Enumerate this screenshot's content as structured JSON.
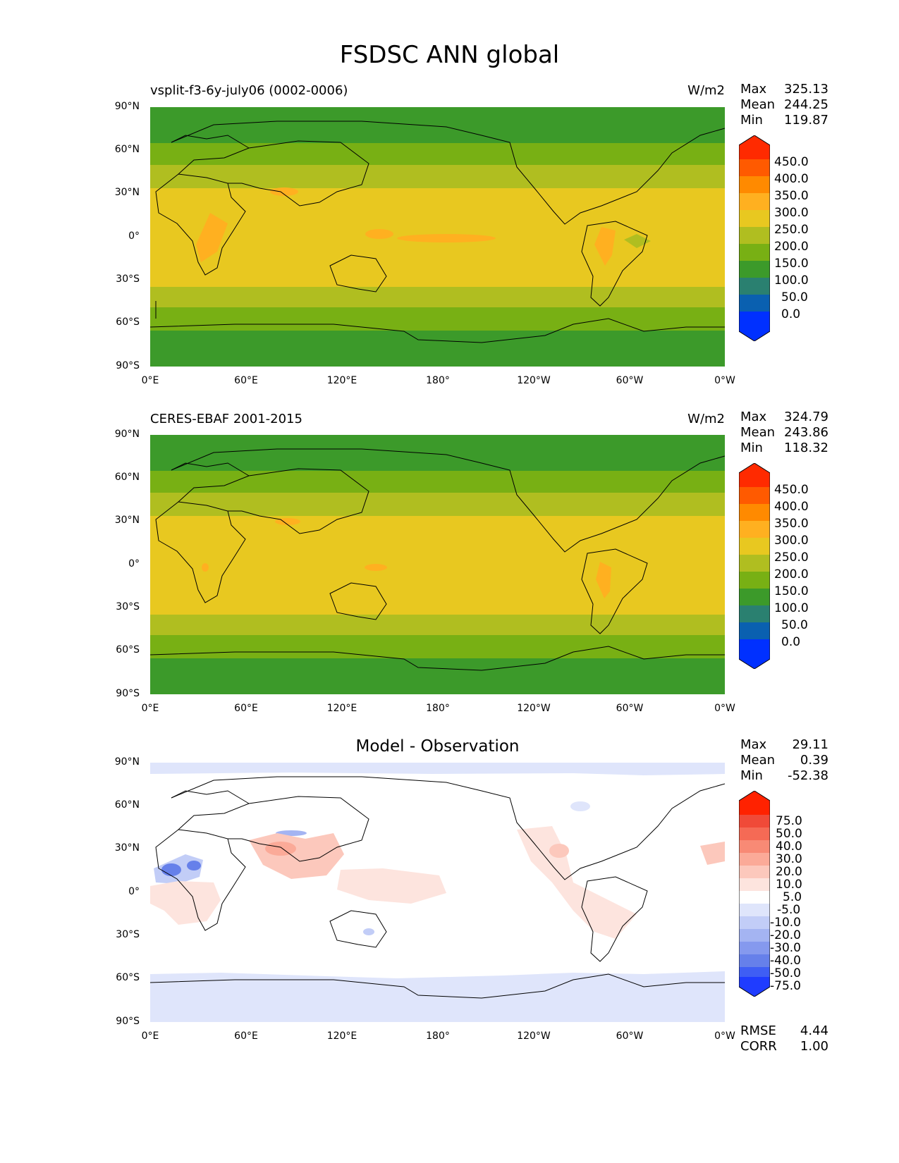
{
  "figure": {
    "title": "FSDSC ANN global"
  },
  "axes": {
    "lat_ticks": [
      "90°N",
      "60°N",
      "30°N",
      "0°",
      "30°S",
      "60°S",
      "90°S"
    ],
    "lon_ticks": [
      "0°E",
      "60°E",
      "120°E",
      "180°",
      "120°W",
      "60°W",
      "0°W"
    ]
  },
  "panels": [
    {
      "title_left": "vsplit-f3-6y-july06 (0002-0006)",
      "units": "W/m2",
      "stats": [
        {
          "label": "Max",
          "value": "325.13"
        },
        {
          "label": "Mean",
          "value": "244.25"
        },
        {
          "label": "Min",
          "value": "119.87"
        }
      ]
    },
    {
      "title_left": "CERES-EBAF 2001-2015",
      "units": "W/m2",
      "stats": [
        {
          "label": "Max",
          "value": "324.79"
        },
        {
          "label": "Mean",
          "value": "243.86"
        },
        {
          "label": "Min",
          "value": "118.32"
        }
      ]
    },
    {
      "title_center": "Model - Observation",
      "stats": [
        {
          "label": "Max",
          "value": "29.11"
        },
        {
          "label": "Mean",
          "value": "0.39"
        },
        {
          "label": "Min",
          "value": "-52.38"
        }
      ],
      "metrics": [
        {
          "label": "RMSE",
          "value": "4.44"
        },
        {
          "label": "CORR",
          "value": "1.00"
        }
      ]
    }
  ],
  "colorbars": {
    "field": {
      "labels": [
        "450.0",
        "400.0",
        "350.0",
        "300.0",
        "250.0",
        "200.0",
        "150.0",
        "100.0",
        "50.0",
        "0.0"
      ],
      "colors_top_to_bottom": [
        "#ff2a00",
        "#ff5a00",
        "#ff8a00",
        "#ffb020",
        "#e8c820",
        "#b0be20",
        "#78b014",
        "#3c9a2a",
        "#2a8070",
        "#0a60b0",
        "#0030ff"
      ]
    },
    "diff": {
      "labels": [
        "75.0",
        "50.0",
        "40.0",
        "30.0",
        "20.0",
        "10.0",
        "5.0",
        "-5.0",
        "-10.0",
        "-20.0",
        "-30.0",
        "-40.0",
        "-50.0",
        "-75.0"
      ],
      "colors_top_to_bottom": [
        "#ff2200",
        "#f04a38",
        "#f56a55",
        "#f88a75",
        "#fbaa98",
        "#fcc8bc",
        "#fde4de",
        "#ffffff",
        "#dfe5fb",
        "#c2cdf7",
        "#a4b4f2",
        "#8599ee",
        "#6680ea",
        "#3f5ef4",
        "#1f3cff"
      ]
    }
  },
  "chart_data": {
    "type": "heatmap",
    "title": "FSDSC ANN global",
    "variable": "FSDSC",
    "units": "W/m2",
    "lon_range": [
      0,
      360
    ],
    "lat_range": [
      -90,
      90
    ],
    "panels": [
      {
        "name": "vsplit-f3-6y-july06 (0002-0006)",
        "max": 325.13,
        "mean": 244.25,
        "min": 119.87,
        "zonal_bands_Wm2": [
          {
            "lat": [
              65,
              90
            ],
            "level": "100-150"
          },
          {
            "lat": [
              48,
              65
            ],
            "level": "150-200"
          },
          {
            "lat": [
              35,
              48
            ],
            "level": "200-250"
          },
          {
            "lat": [
              -35,
              35
            ],
            "level": "250-300"
          },
          {
            "lat": [
              -53,
              -35
            ],
            "level": "200-250"
          },
          {
            "lat": [
              -65,
              -53
            ],
            "level": "150-200"
          },
          {
            "lat": [
              -90,
              -65
            ],
            "level": "100-150"
          }
        ]
      },
      {
        "name": "CERES-EBAF 2001-2015",
        "max": 324.79,
        "mean": 243.86,
        "min": 118.32,
        "zonal_bands_Wm2": [
          {
            "lat": [
              65,
              90
            ],
            "level": "100-150"
          },
          {
            "lat": [
              48,
              65
            ],
            "level": "150-200"
          },
          {
            "lat": [
              35,
              48
            ],
            "level": "200-250"
          },
          {
            "lat": [
              -35,
              35
            ],
            "level": "250-300"
          },
          {
            "lat": [
              -53,
              -35
            ],
            "level": "200-250"
          },
          {
            "lat": [
              -65,
              -53
            ],
            "level": "150-200"
          },
          {
            "lat": [
              -90,
              -65
            ],
            "level": "100-150"
          }
        ]
      },
      {
        "name": "Model - Observation",
        "max": 29.11,
        "mean": 0.39,
        "min": -52.38,
        "rmse": 4.44,
        "corr": 1.0
      }
    ],
    "field_levels": [
      0,
      50,
      100,
      150,
      200,
      250,
      300,
      350,
      400,
      450
    ],
    "diff_levels": [
      -75,
      -50,
      -40,
      -30,
      -20,
      -10,
      -5,
      5,
      10,
      20,
      30,
      40,
      50,
      75
    ]
  }
}
